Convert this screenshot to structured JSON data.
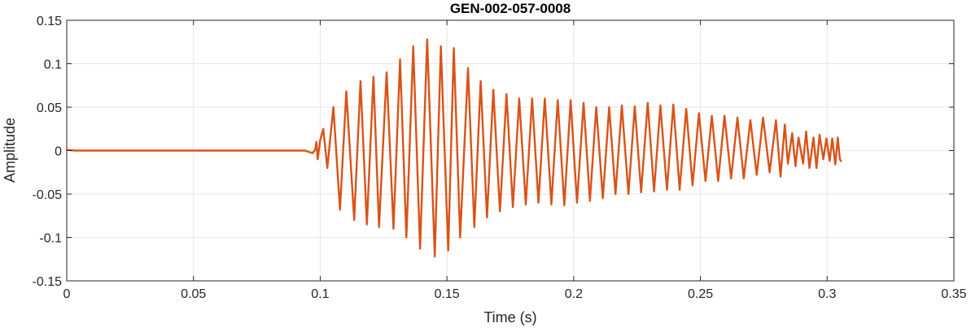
{
  "chart_data": {
    "type": "line",
    "title": "GEN-002-057-0008",
    "xlabel": "Time (s)",
    "ylabel": "Amplitude",
    "xlim": [
      0,
      0.35
    ],
    "ylim": [
      -0.15,
      0.15
    ],
    "xticks": [
      0,
      0.05,
      0.1,
      0.15,
      0.2,
      0.25,
      0.3,
      0.35
    ],
    "xtick_labels": [
      "0",
      "0.05",
      "0.1",
      "0.15",
      "0.2",
      "0.25",
      "0.3",
      "0.35"
    ],
    "yticks": [
      -0.15,
      -0.1,
      -0.05,
      0,
      0.05,
      0.1,
      0.15
    ],
    "ytick_labels": [
      "-0.15",
      "-0.1",
      "-0.05",
      "0",
      "0.05",
      "0.1",
      "0.15"
    ],
    "grid": true,
    "line_color": "#D95319",
    "series": [
      {
        "x": [
          0,
          0.003,
          0.0098,
          0.0197,
          0.0295,
          0.0394,
          0.0492,
          0.0591,
          0.0689,
          0.0787,
          0.0886,
          0.094,
          0.097,
          0.098,
          0.0985,
          0.099,
          0.1,
          0.1012,
          0.1028,
          0.1052,
          0.1078,
          0.1103,
          0.1134,
          0.1159,
          0.1184,
          0.121,
          0.1232,
          0.1262,
          0.1289,
          0.1315,
          0.134,
          0.1367,
          0.1394,
          0.1422,
          0.1452,
          0.1476,
          0.1505,
          0.1527,
          0.1552,
          0.1583,
          0.1608,
          0.1633,
          0.1658,
          0.1683,
          0.1709,
          0.1735,
          0.176,
          0.1785,
          0.1811,
          0.1836,
          0.1861,
          0.1886,
          0.1912,
          0.1937,
          0.1963,
          0.1988,
          0.2013,
          0.2039,
          0.2064,
          0.2089,
          0.2115,
          0.214,
          0.2165,
          0.219,
          0.2216,
          0.2241,
          0.2266,
          0.2292,
          0.2317,
          0.2342,
          0.2368,
          0.2393,
          0.2418,
          0.2444,
          0.2469,
          0.2494,
          0.252,
          0.2545,
          0.257,
          0.2595,
          0.2621,
          0.2646,
          0.2671,
          0.2697,
          0.2722,
          0.2747,
          0.2773,
          0.2798,
          0.2816,
          0.2833,
          0.2845,
          0.2862,
          0.2875,
          0.2887,
          0.2905,
          0.2917,
          0.293,
          0.2946,
          0.2958,
          0.297,
          0.2985,
          0.2997,
          0.301,
          0.302,
          0.3032,
          0.3042,
          0.305,
          0.3055
        ],
        "y": [
          0.001,
          0.0,
          0.0,
          0.0,
          0.0,
          0.0,
          0.0,
          0.0,
          0.0,
          0.0,
          0.0,
          0.0,
          -0.003,
          0.001,
          0.01,
          -0.01,
          0.012,
          0.025,
          -0.02,
          0.05,
          -0.068,
          0.068,
          -0.08,
          0.08,
          -0.085,
          0.085,
          -0.088,
          0.09,
          -0.09,
          0.105,
          -0.1,
          0.12,
          -0.113,
          0.128,
          -0.122,
          0.12,
          -0.115,
          0.118,
          -0.1,
          0.095,
          -0.088,
          0.08,
          -0.077,
          0.07,
          -0.07,
          0.065,
          -0.065,
          0.06,
          -0.062,
          0.06,
          -0.06,
          0.06,
          -0.062,
          0.058,
          -0.063,
          0.058,
          -0.06,
          0.055,
          -0.058,
          0.05,
          -0.055,
          0.05,
          -0.05,
          0.052,
          -0.05,
          0.051,
          -0.048,
          0.055,
          -0.047,
          0.052,
          -0.045,
          0.053,
          -0.045,
          0.048,
          -0.04,
          0.043,
          -0.035,
          0.04,
          -0.035,
          0.04,
          -0.032,
          0.038,
          -0.032,
          0.035,
          -0.028,
          0.038,
          -0.025,
          0.035,
          -0.03,
          0.03,
          -0.015,
          0.02,
          -0.018,
          0.015,
          -0.015,
          0.022,
          -0.02,
          0.015,
          -0.02,
          0.018,
          -0.01,
          0.014,
          -0.012,
          0.014,
          -0.016,
          0.015,
          -0.01,
          -0.012
        ]
      }
    ]
  }
}
